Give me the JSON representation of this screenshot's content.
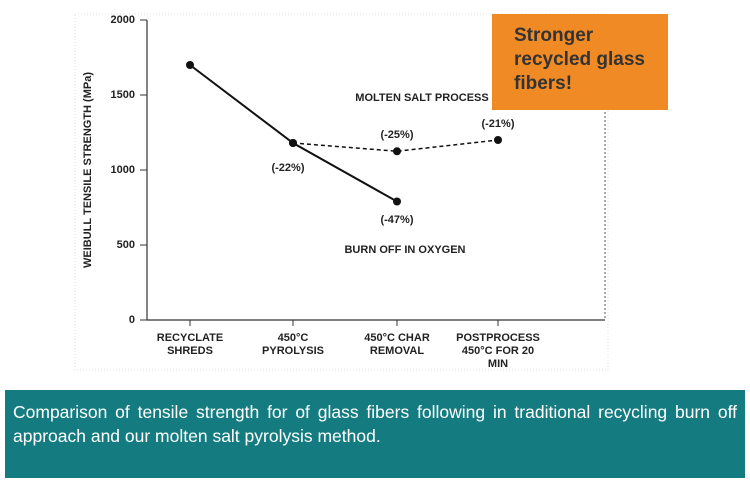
{
  "chart_data": {
    "type": "line",
    "ylabel": "WEIBULL TENSILE STRENGTH (MPa)",
    "categories": [
      "RECYCLATE SHREDS",
      "450°C PYROLYSIS",
      "450°C CHAR REMOVAL",
      "POSTPROCESS 450°C FOR 20 MIN"
    ],
    "series": [
      {
        "name": "BURN OFF IN OXYGEN",
        "color": "#111111",
        "dashed": false,
        "values": [
          1700,
          1180,
          790,
          null
        ]
      },
      {
        "name": "MOLTEN SALT PROCESS",
        "color": "#111111",
        "dashed": true,
        "values": [
          null,
          1180,
          1125,
          1200
        ]
      }
    ],
    "annotations": [
      "(-22%)",
      "(-25%)",
      "(-47%)",
      "(-21%)"
    ],
    "ylim": [
      0,
      2000
    ],
    "yticks": [
      0,
      500,
      1000,
      1500,
      2000
    ]
  },
  "callout": "Stronger recycled glass fibers!",
  "caption": "Comparison of tensile strength for of glass fibers following in traditional recycling burn off approach and our molten salt pyrolysis method."
}
